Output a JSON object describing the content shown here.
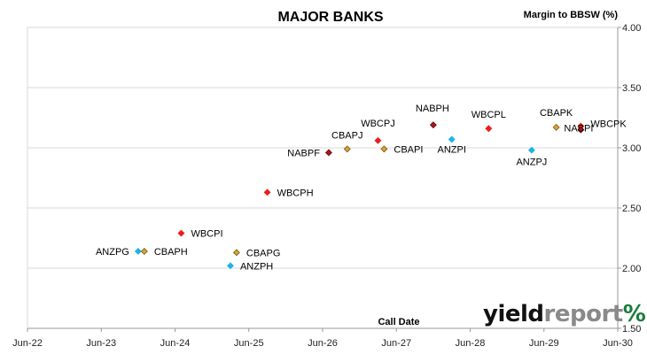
{
  "chart_data": {
    "type": "scatter",
    "title": "MAJOR BANKS",
    "xlabel": "Call Date",
    "ylabel": "Margin to BBSW (%)",
    "x_ticks": [
      "Jun-22",
      "Jun-23",
      "Jun-24",
      "Jun-25",
      "Jun-26",
      "Jun-27",
      "Jun-28",
      "Jun-29",
      "Jun-30"
    ],
    "y_ticks": [
      "1.50",
      "2.00",
      "2.50",
      "3.00",
      "3.50",
      "4.00"
    ],
    "xlim": [
      "2022-06",
      "2030-06"
    ],
    "ylim": [
      1.5,
      4.0
    ],
    "grid": "horizontal",
    "axis_position": "right",
    "series_colors": {
      "WBC": "#e8201c",
      "NAB": "#b5121b",
      "CBA": "#e2a030",
      "ANZ": "#1fb3e6"
    },
    "points": [
      {
        "label": "ANZPG",
        "x": "2023-12",
        "y": 2.14,
        "issuer": "ANZ"
      },
      {
        "label": "CBAPH",
        "x": "2024-01",
        "y": 2.14,
        "issuer": "CBA"
      },
      {
        "label": "WBCPI",
        "x": "2024-07",
        "y": 2.29,
        "issuer": "WBC"
      },
      {
        "label": "ANZPH",
        "x": "2025-03",
        "y": 2.02,
        "issuer": "ANZ"
      },
      {
        "label": "CBAPG",
        "x": "2025-04",
        "y": 2.13,
        "issuer": "CBA"
      },
      {
        "label": "WBCPH",
        "x": "2025-09",
        "y": 2.63,
        "issuer": "WBC"
      },
      {
        "label": "NABPF",
        "x": "2026-07",
        "y": 2.96,
        "issuer": "NAB"
      },
      {
        "label": "CBAPJ",
        "x": "2026-10",
        "y": 2.99,
        "issuer": "CBA"
      },
      {
        "label": "WBCPJ",
        "x": "2027-03",
        "y": 3.06,
        "issuer": "WBC"
      },
      {
        "label": "CBAPI",
        "x": "2027-04",
        "y": 2.99,
        "issuer": "CBA"
      },
      {
        "label": "NABPH",
        "x": "2027-12",
        "y": 3.19,
        "issuer": "NAB"
      },
      {
        "label": "ANZPI",
        "x": "2028-03",
        "y": 3.07,
        "issuer": "ANZ"
      },
      {
        "label": "WBCPL",
        "x": "2028-09",
        "y": 3.16,
        "issuer": "WBC"
      },
      {
        "label": "ANZPJ",
        "x": "2029-04",
        "y": 2.98,
        "issuer": "ANZ"
      },
      {
        "label": "CBAPK",
        "x": "2029-08",
        "y": 3.17,
        "issuer": "CBA"
      },
      {
        "label": "NABPI",
        "x": "2029-12",
        "y": 3.15,
        "issuer": "NAB"
      },
      {
        "label": "WBCPK",
        "x": "2029-12",
        "y": 3.18,
        "issuer": "WBC"
      }
    ]
  },
  "brand": {
    "part1": "yield",
    "part2": "report",
    "symbol": "%"
  }
}
